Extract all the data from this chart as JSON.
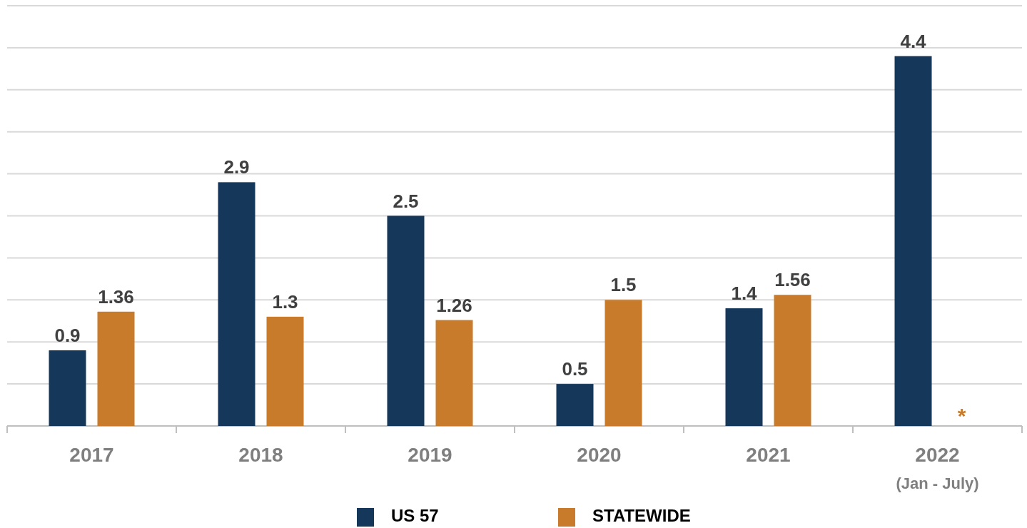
{
  "chart_data": {
    "type": "bar",
    "categories": [
      "2017",
      "2018",
      "2019",
      "2020",
      "2021",
      "2022\n(Jan - July)"
    ],
    "series": [
      {
        "name": "US 57",
        "color": "#14375a",
        "values": [
          0.9,
          2.9,
          2.5,
          0.5,
          1.4,
          4.4
        ]
      },
      {
        "name": "STATEWIDE",
        "color": "#c87b2a",
        "values": [
          1.36,
          1.3,
          1.26,
          1.5,
          1.56,
          null
        ]
      }
    ],
    "ylim": [
      0,
      5
    ],
    "yticks": [
      {
        "value": 0,
        "label": null
      },
      {
        "value": 0.5,
        "label": null
      },
      {
        "value": 1,
        "label": null
      },
      {
        "value": 1.5,
        "label": null
      },
      {
        "value": 2,
        "label": null
      },
      {
        "value": 2.5,
        "label": null
      },
      {
        "value": 3,
        "label": null
      },
      {
        "value": 3.5,
        "label": null
      },
      {
        "value": 4,
        "label": null
      },
      {
        "value": 4.5,
        "label": null
      },
      {
        "value": 5,
        "label": null
      }
    ],
    "grid": "y",
    "data_labels": true,
    "legend": "bottom",
    "tick_labels": "x",
    "annotations": [
      "*"
    ]
  }
}
